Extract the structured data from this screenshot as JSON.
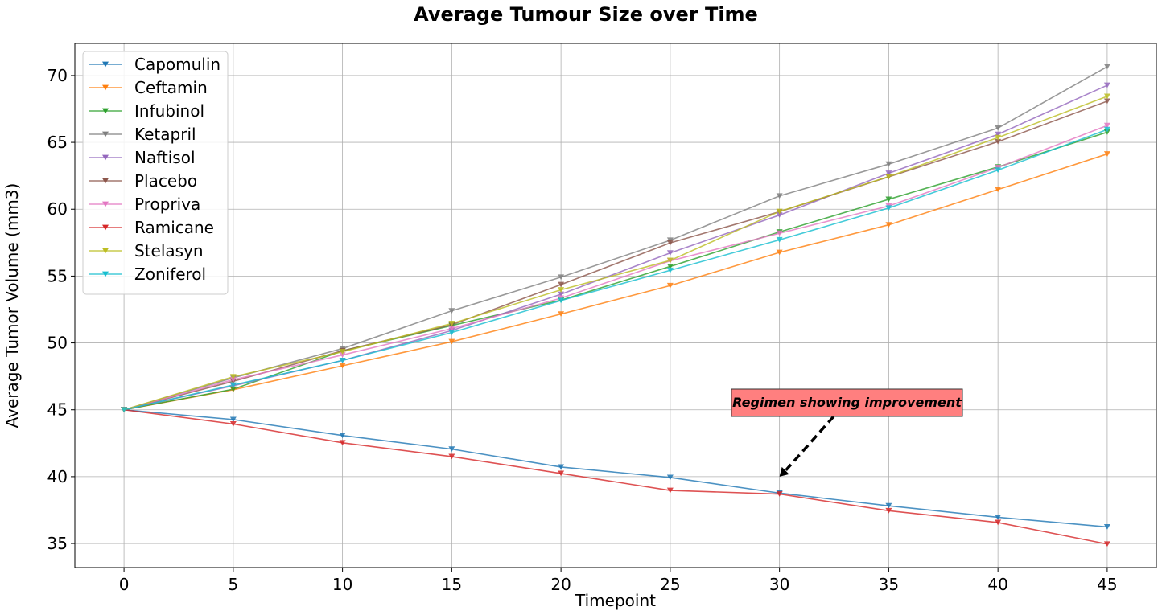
{
  "chart_data": {
    "type": "line",
    "title": "Average Tumour Size over Time",
    "xlabel": "Timepoint",
    "ylabel": "Average Tumor Volume (mm3)",
    "x": [
      0,
      5,
      10,
      15,
      20,
      25,
      30,
      35,
      40,
      45
    ],
    "xticks": [
      0,
      5,
      10,
      15,
      20,
      25,
      30,
      35,
      40,
      45
    ],
    "yticks": [
      35,
      40,
      45,
      50,
      55,
      60,
      65,
      70
    ],
    "xlim": [
      -2.25,
      47.25
    ],
    "ylim": [
      33.2,
      72.4
    ],
    "grid": true,
    "marker": "triangle-down",
    "legend_position": "top-left",
    "series": [
      {
        "name": "Capomulin",
        "color": "#1f77b4",
        "values": [
          45.0,
          44.27,
          43.08,
          42.06,
          40.72,
          39.94,
          38.77,
          37.82,
          36.96,
          36.24
        ]
      },
      {
        "name": "Ceftamin",
        "color": "#ff7f0e",
        "values": [
          45.0,
          46.5,
          48.29,
          50.09,
          52.16,
          54.29,
          56.77,
          58.83,
          61.47,
          64.13
        ]
      },
      {
        "name": "Infubinol",
        "color": "#2ca02c",
        "values": [
          45.0,
          46.54,
          49.4,
          51.3,
          53.2,
          55.72,
          58.3,
          60.74,
          63.16,
          65.76
        ]
      },
      {
        "name": "Ketapril",
        "color": "#7f7f7f",
        "values": [
          45.0,
          47.39,
          49.58,
          52.4,
          54.92,
          57.68,
          60.99,
          63.37,
          66.07,
          70.66
        ]
      },
      {
        "name": "Naftisol",
        "color": "#9467bd",
        "values": [
          45.0,
          46.8,
          48.69,
          50.93,
          53.64,
          56.73,
          59.56,
          62.69,
          65.6,
          69.27
        ]
      },
      {
        "name": "Placebo",
        "color": "#8c564b",
        "values": [
          45.0,
          47.13,
          49.42,
          51.36,
          54.36,
          57.48,
          59.81,
          62.42,
          65.05,
          68.08
        ]
      },
      {
        "name": "Propriva",
        "color": "#e377c2",
        "values": [
          45.0,
          47.25,
          49.1,
          51.07,
          53.35,
          56.14,
          58.2,
          60.24,
          63.12,
          66.26
        ]
      },
      {
        "name": "Ramicane",
        "color": "#d62728",
        "values": [
          45.0,
          43.94,
          42.53,
          41.5,
          40.24,
          38.97,
          38.7,
          37.45,
          36.57,
          34.96
        ]
      },
      {
        "name": "Stelasyn",
        "color": "#bcbd22",
        "values": [
          45.0,
          47.47,
          49.34,
          51.45,
          53.97,
          56.17,
          59.83,
          62.44,
          65.36,
          68.44
        ]
      },
      {
        "name": "Zoniferol",
        "color": "#17becf",
        "values": [
          45.0,
          46.85,
          48.69,
          50.78,
          53.17,
          55.43,
          57.71,
          60.09,
          62.92,
          65.96
        ]
      }
    ],
    "annotations": [
      {
        "text": "Regimen showing improvement",
        "box_color": "#ff7f7f",
        "arrow_target": {
          "x": 30,
          "y": 40
        }
      }
    ]
  }
}
